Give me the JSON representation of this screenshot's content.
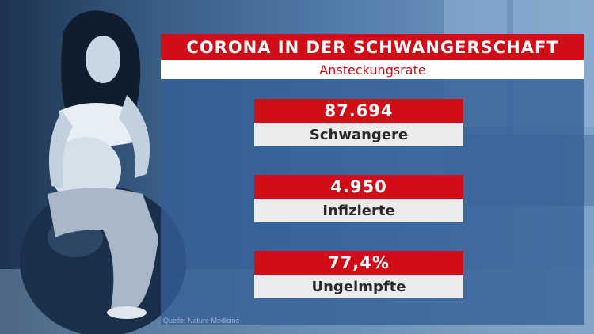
{
  "graphic": {
    "title": "CORONA IN DER SCHWANGERSCHAFT",
    "subtitle": "Ansteckungsrate",
    "stats": [
      {
        "value": "87.694",
        "label": "Schwangere"
      },
      {
        "value": "4.950",
        "label": "Infizierte"
      },
      {
        "value": "77,4%",
        "label": "Ungeimpfte"
      }
    ],
    "source": "Quelle: Nature Medicine"
  },
  "colors": {
    "accent_red": "#d10e17",
    "label_bg": "#ececec",
    "panel_blue": "#346096"
  }
}
